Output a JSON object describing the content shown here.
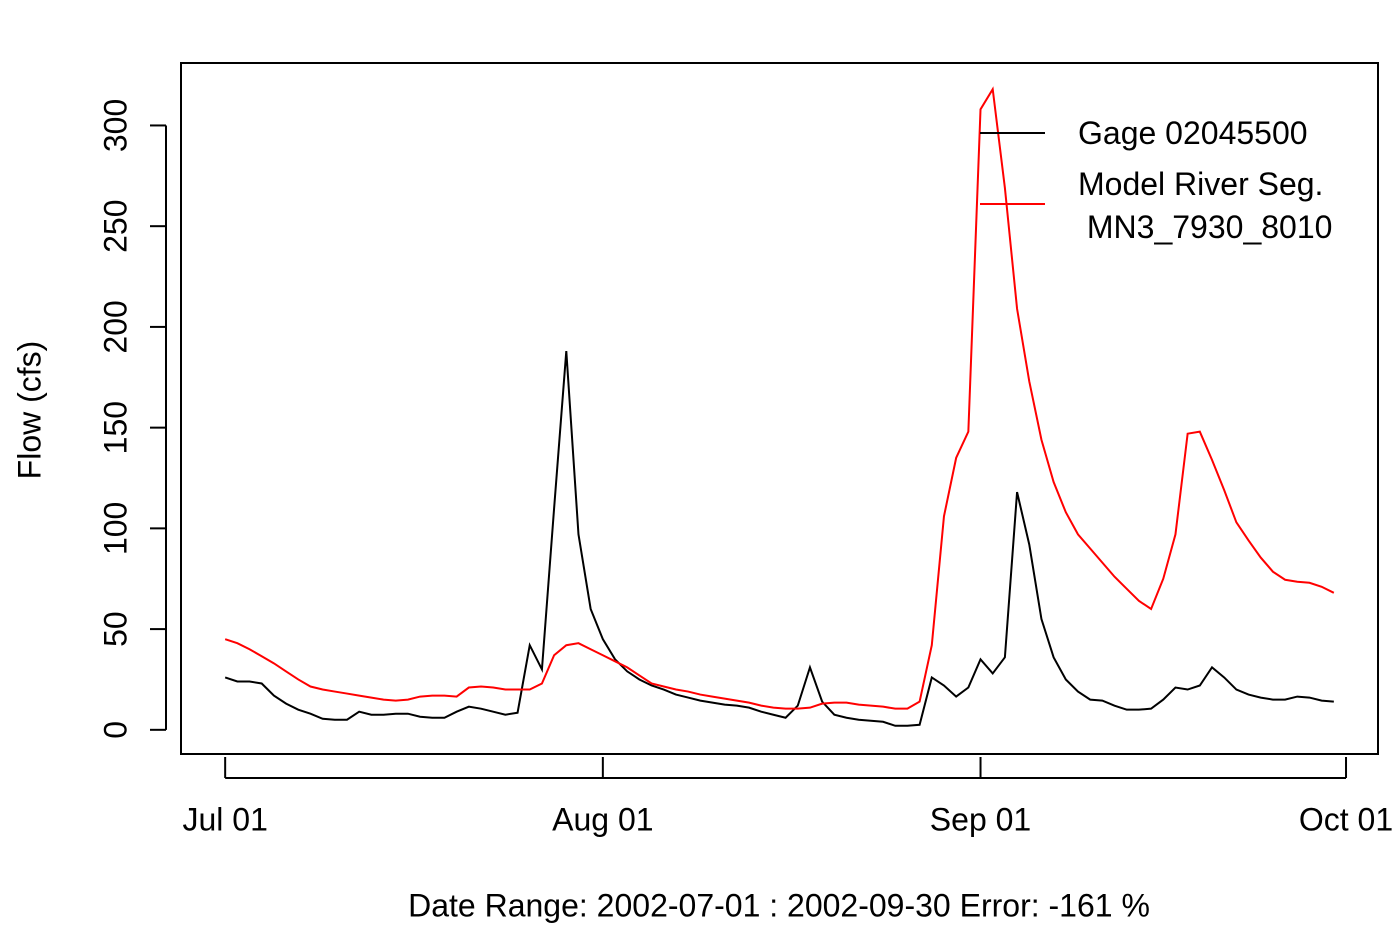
{
  "chart_data": {
    "type": "line",
    "xlabel": "Date Range: 2002-07-01 : 2002-09-30   Error: -161 %",
    "ylabel": "Flow (cfs)",
    "x": [
      "2002-07-01",
      "2002-07-02",
      "2002-07-03",
      "2002-07-04",
      "2002-07-05",
      "2002-07-06",
      "2002-07-07",
      "2002-07-08",
      "2002-07-09",
      "2002-07-10",
      "2002-07-11",
      "2002-07-12",
      "2002-07-13",
      "2002-07-14",
      "2002-07-15",
      "2002-07-16",
      "2002-07-17",
      "2002-07-18",
      "2002-07-19",
      "2002-07-20",
      "2002-07-21",
      "2002-07-22",
      "2002-07-23",
      "2002-07-24",
      "2002-07-25",
      "2002-07-26",
      "2002-07-27",
      "2002-07-28",
      "2002-07-29",
      "2002-07-30",
      "2002-07-31",
      "2002-08-01",
      "2002-08-02",
      "2002-08-03",
      "2002-08-04",
      "2002-08-05",
      "2002-08-06",
      "2002-08-07",
      "2002-08-08",
      "2002-08-09",
      "2002-08-10",
      "2002-08-11",
      "2002-08-12",
      "2002-08-13",
      "2002-08-14",
      "2002-08-15",
      "2002-08-16",
      "2002-08-17",
      "2002-08-18",
      "2002-08-19",
      "2002-08-20",
      "2002-08-21",
      "2002-08-22",
      "2002-08-23",
      "2002-08-24",
      "2002-08-25",
      "2002-08-26",
      "2002-08-27",
      "2002-08-28",
      "2002-08-29",
      "2002-08-30",
      "2002-08-31",
      "2002-09-01",
      "2002-09-02",
      "2002-09-03",
      "2002-09-04",
      "2002-09-05",
      "2002-09-06",
      "2002-09-07",
      "2002-09-08",
      "2002-09-09",
      "2002-09-10",
      "2002-09-11",
      "2002-09-12",
      "2002-09-13",
      "2002-09-14",
      "2002-09-15",
      "2002-09-16",
      "2002-09-17",
      "2002-09-18",
      "2002-09-19",
      "2002-09-20",
      "2002-09-21",
      "2002-09-22",
      "2002-09-23",
      "2002-09-24",
      "2002-09-25",
      "2002-09-26",
      "2002-09-27",
      "2002-09-28",
      "2002-09-29",
      "2002-09-30"
    ],
    "series": [
      {
        "name": "Gage 02045500",
        "color": "#000000",
        "values": [
          26,
          24,
          24,
          23,
          17,
          13,
          10,
          8,
          5.5,
          5,
          5,
          9,
          7.5,
          7.5,
          8,
          8,
          6.5,
          6,
          6,
          9,
          11.5,
          10.5,
          9,
          7.5,
          8.5,
          42,
          30,
          110,
          188,
          97,
          60,
          45,
          35,
          29,
          25,
          22,
          20,
          17.5,
          16,
          14.5,
          13.5,
          12.5,
          12,
          11,
          9,
          7.5,
          6,
          12,
          31,
          14,
          7.5,
          6,
          5,
          4.5,
          4,
          2,
          2,
          2.5,
          26,
          22,
          16.5,
          21,
          35,
          28,
          36,
          118,
          92,
          55,
          36,
          25,
          19,
          15,
          14.5,
          12,
          10,
          10,
          10.5,
          15,
          21,
          20,
          22,
          31,
          26,
          20,
          17.5,
          16,
          15,
          15,
          16.5,
          16,
          14.5,
          14
        ]
      },
      {
        "name": "Model River Seg.\n MN3_7930_8010",
        "color": "#ff0000",
        "values": [
          45,
          43,
          40,
          36.5,
          33,
          29,
          25,
          21.5,
          20,
          19,
          18,
          17,
          16,
          15,
          14.5,
          15,
          16.5,
          17,
          17,
          16.5,
          21,
          21.5,
          21,
          20,
          20,
          20,
          23,
          37,
          42,
          43,
          40,
          37,
          34,
          31,
          27,
          23,
          21.5,
          20,
          19,
          17.5,
          16.5,
          15.5,
          14.5,
          13.5,
          12,
          11,
          10.5,
          10.5,
          11,
          13,
          13.5,
          13.5,
          12.5,
          12,
          11.5,
          10.5,
          10.5,
          14,
          42,
          106,
          135,
          148,
          308,
          318,
          269,
          209,
          173,
          144,
          123,
          108,
          97,
          90,
          83,
          76,
          70,
          64,
          60,
          75,
          97,
          147,
          148,
          134,
          119,
          103,
          94,
          85.5,
          78.5,
          74.5,
          73.5,
          73,
          71,
          68
        ]
      }
    ],
    "xlim": [
      "2002-06-27T09:00",
      "2002-10-03T15:00"
    ],
    "xticks": [
      {
        "value": "2002-07-01",
        "label": "Jul 01"
      },
      {
        "value": "2002-08-01",
        "label": "Aug 01"
      },
      {
        "value": "2002-09-01",
        "label": "Sep 01"
      },
      {
        "value": "2002-10-01",
        "label": "Oct 01"
      }
    ],
    "ylim": [
      -12,
      331
    ],
    "yticks": [
      0,
      50,
      100,
      150,
      200,
      250,
      300
    ],
    "legend": "topright"
  }
}
